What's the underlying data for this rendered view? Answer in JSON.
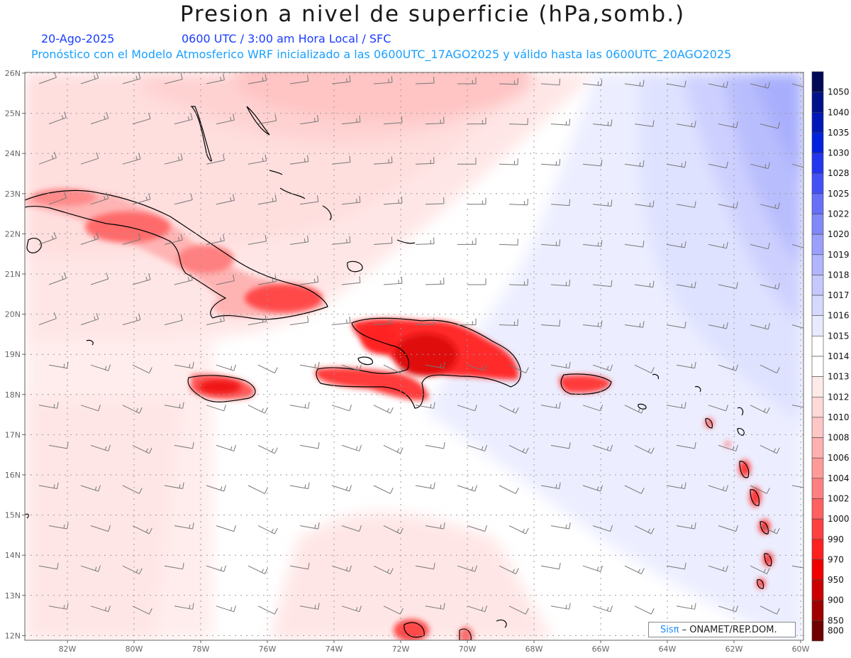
{
  "title": "Presion a nivel de superficie (hPa,somb.)",
  "date": "20-Ago-2025",
  "time_line": "0600 UTC / 3:00 am Hora Local / SFC",
  "model_line": "Pronóstico con el Modelo Atmosferico WRF inicializado a las 0600UTC_17AGO2025 y válido hasta las  0600UTC_20AGO2025",
  "credit": {
    "logo": "Sisπ",
    "text": "– ONAMET/REP.DOM."
  },
  "lat_labels": [
    "26N",
    "25N",
    "24N",
    "23N",
    "22N",
    "21N",
    "20N",
    "19N",
    "18N",
    "17N",
    "16N",
    "15N",
    "14N",
    "13N",
    "12N"
  ],
  "lon_labels": [
    "82W",
    "80W",
    "78W",
    "76W",
    "74W",
    "72W",
    "70W",
    "68W",
    "66W",
    "64W",
    "62W",
    "60W"
  ],
  "colorbar": {
    "levels": [
      "1050",
      "1040",
      "1035",
      "1030",
      "1028",
      "1025",
      "1022",
      "1020",
      "1019",
      "1018",
      "1017",
      "1016",
      "1015",
      "1014",
      "1013",
      "1012",
      "1010",
      "1008",
      "1006",
      "1004",
      "1002",
      "1000",
      "990",
      "970",
      "950",
      "900",
      "850",
      "800"
    ],
    "colors": [
      "#000a55",
      "#00128a",
      "#0018b8",
      "#0020e0",
      "#2236f0",
      "#4450f5",
      "#6670f8",
      "#8088fa",
      "#9aa0fb",
      "#b0b5fc",
      "#c4c8fd",
      "#d6d9fe",
      "#e8eaff",
      "#ffffff",
      "#ffffff",
      "#ffeaea",
      "#ffd8d8",
      "#ffc6c6",
      "#ffb0b0",
      "#ff9a9a",
      "#ff8080",
      "#ff6060",
      "#ff4040",
      "#ff2020",
      "#f00000",
      "#cc0000",
      "#a00000",
      "#700000"
    ]
  }
}
